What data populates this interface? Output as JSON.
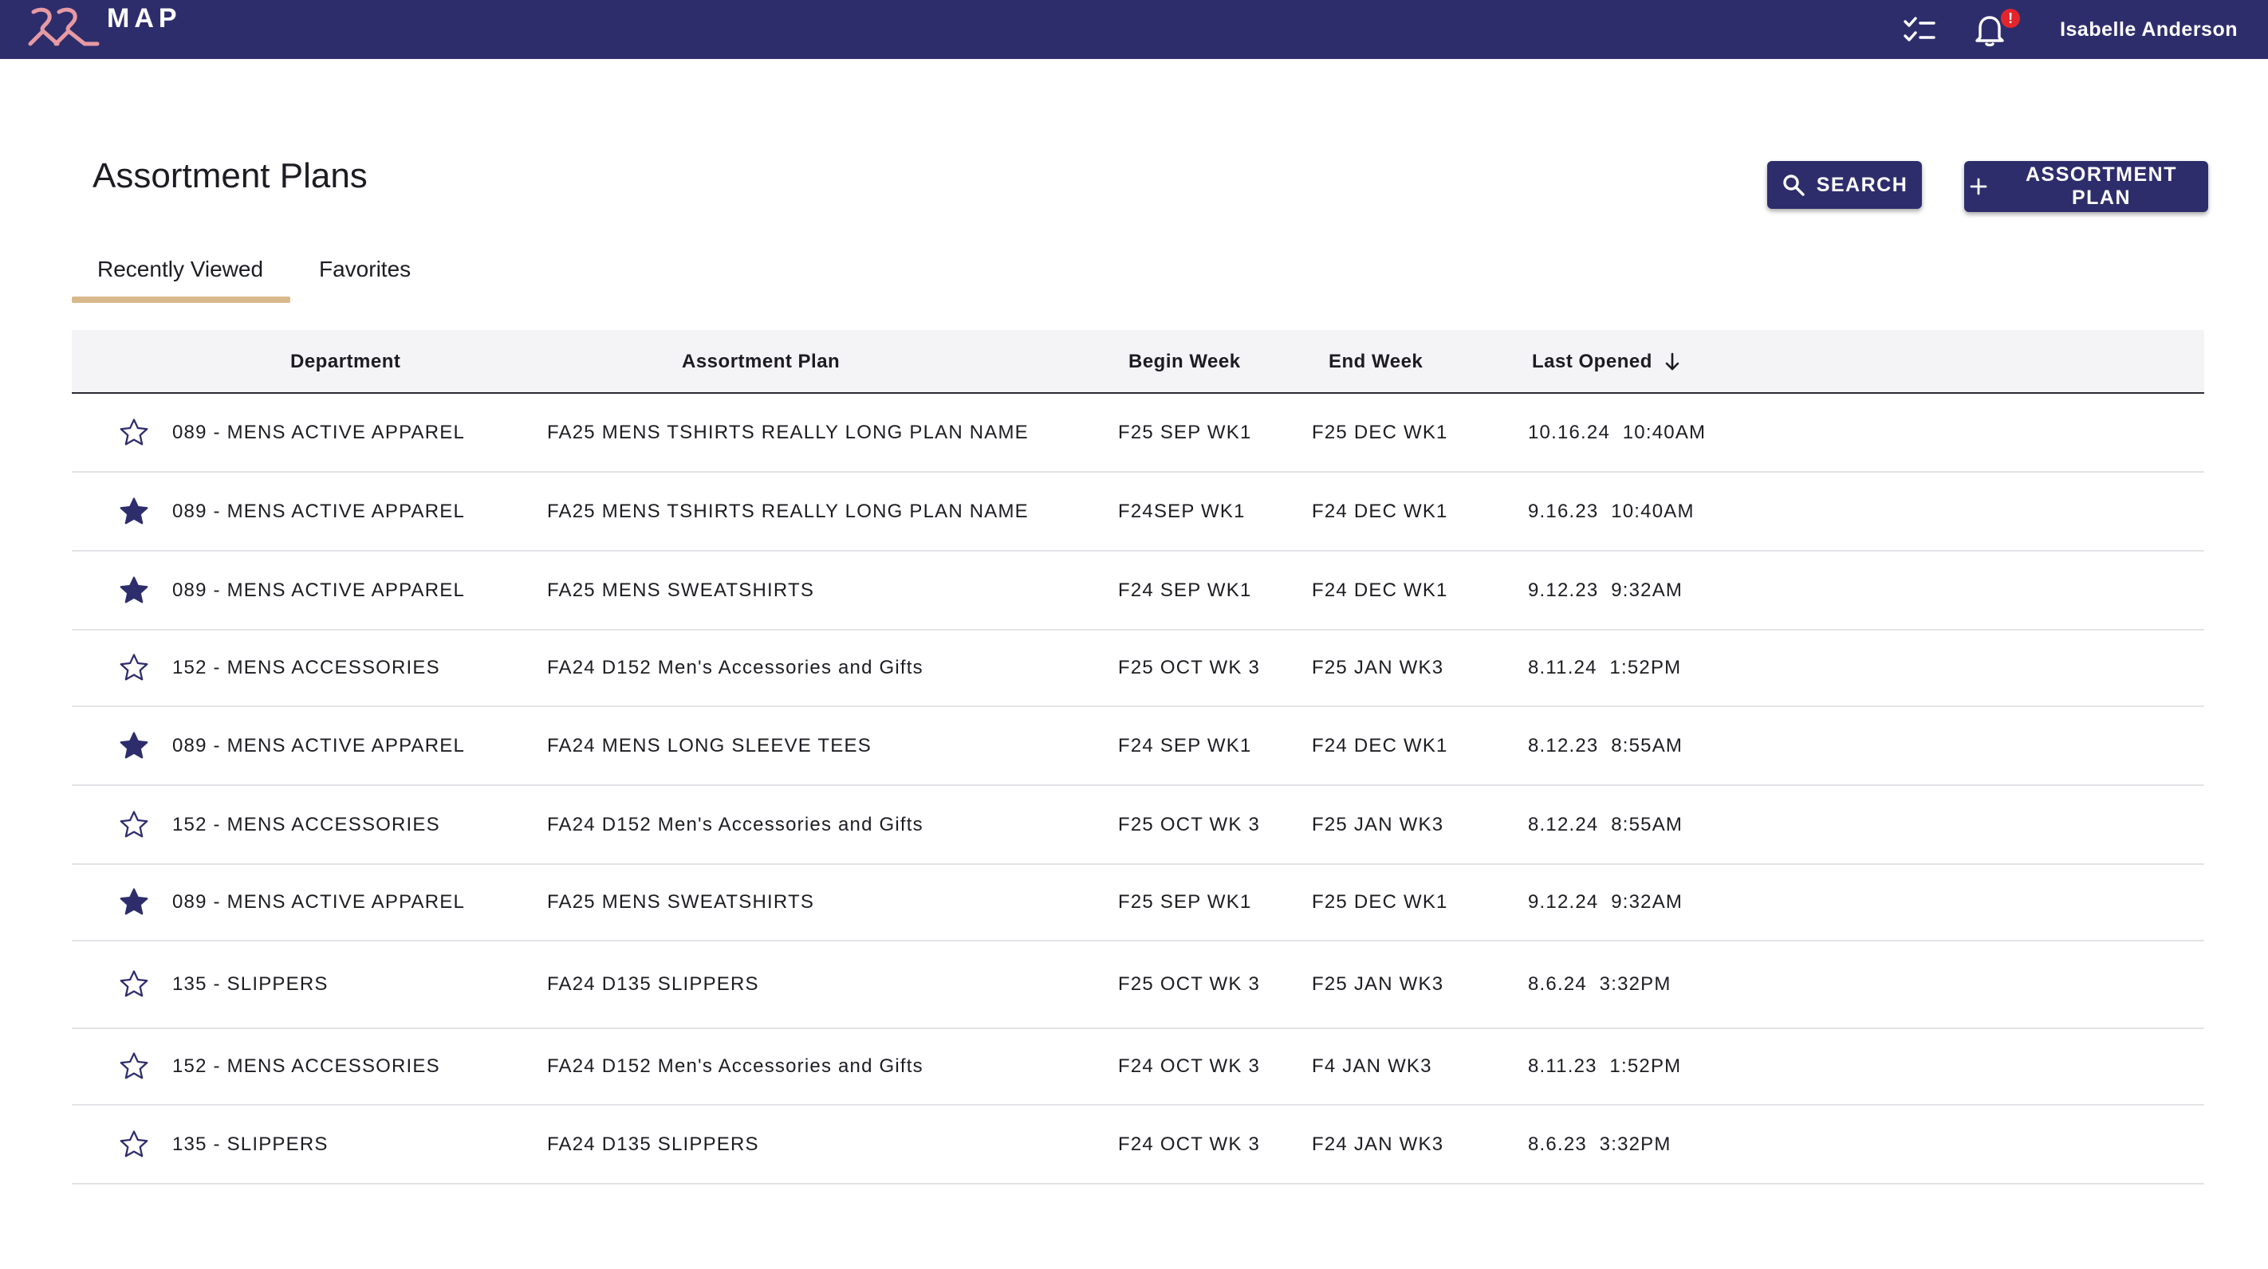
{
  "header": {
    "brand_text": "MAP",
    "user_name": "Isabelle Anderson",
    "notification_badge": "!",
    "accent_color": "#2e2d6c",
    "badge_color": "#e4262c"
  },
  "page": {
    "title": "Assortment Plans",
    "search_label": "SEARCH",
    "add_label": "ASSORTMENT PLAN"
  },
  "tabs": [
    {
      "label": "Recently Viewed",
      "active": true
    },
    {
      "label": "Favorites",
      "active": false
    }
  ],
  "table": {
    "columns": [
      "Department",
      "Assortment Plan",
      "Begin Week",
      "End Week",
      "Last Opened"
    ],
    "sort_column": "Last Opened",
    "sort_direction": "descending",
    "rows": [
      {
        "favorite": false,
        "department": "089 - MENS ACTIVE APPAREL",
        "plan": "FA25 MENS TSHIRTS REALLY LONG PLAN NAME",
        "begin": "F25 SEP WK1",
        "end": "F25 DEC WK1",
        "last_opened": "10.16.24  10:40AM"
      },
      {
        "favorite": true,
        "department": "089 - MENS ACTIVE APPAREL",
        "plan": "FA25 MENS TSHIRTS REALLY LONG PLAN NAME",
        "begin": "F24SEP WK1",
        "end": "F24 DEC WK1",
        "last_opened": "9.16.23  10:40AM"
      },
      {
        "favorite": true,
        "department": "089 - MENS ACTIVE APPAREL",
        "plan": "FA25 MENS SWEATSHIRTS",
        "begin": "F24 SEP WK1",
        "end": "F24 DEC WK1",
        "last_opened": "9.12.23  9:32AM"
      },
      {
        "favorite": false,
        "department": "152 - MENS ACCESSORIES",
        "plan": "FA24 D152 Men's Accessories and Gifts",
        "begin": "F25 OCT WK 3",
        "end": "F25 JAN WK3",
        "last_opened": "8.11.24  1:52PM"
      },
      {
        "favorite": true,
        "department": "089 - MENS ACTIVE APPAREL",
        "plan": "FA24 MENS LONG SLEEVE TEES",
        "begin": "F24 SEP WK1",
        "end": "F24 DEC WK1",
        "last_opened": "8.12.23  8:55AM"
      },
      {
        "favorite": false,
        "department": "152 - MENS ACCESSORIES",
        "plan": "FA24 D152 Men's Accessories and Gifts",
        "begin": "F25 OCT WK 3",
        "end": "F25 JAN WK3",
        "last_opened": "8.12.24  8:55AM"
      },
      {
        "favorite": true,
        "department": "089 - MENS ACTIVE APPAREL",
        "plan": "FA25 MENS SWEATSHIRTS",
        "begin": "F25 SEP WK1",
        "end": "F25 DEC WK1",
        "last_opened": "9.12.24  9:32AM"
      },
      {
        "favorite": false,
        "department": "135 - SLIPPERS",
        "plan": "FA24 D135 SLIPPERS",
        "begin": "F25 OCT WK 3",
        "end": "F25 JAN WK3",
        "last_opened": "8.6.24  3:32PM"
      },
      {
        "favorite": false,
        "department": "152 - MENS ACCESSORIES",
        "plan": "FA24 D152 Men's Accessories and Gifts",
        "begin": "F24 OCT WK 3",
        "end": "F4 JAN WK3",
        "last_opened": "8.11.23  1:52PM"
      },
      {
        "favorite": false,
        "department": "135 - SLIPPERS",
        "plan": "FA24 D135 SLIPPERS",
        "begin": "F24 OCT WK 3",
        "end": "F24 JAN WK3",
        "last_opened": "8.6.23  3:32PM"
      }
    ]
  },
  "icons": {
    "logo": "hanger-logo-icon",
    "tasks": "checklist-icon",
    "notifications": "bell-icon",
    "search": "search-icon",
    "add": "plus-icon",
    "sort": "arrow-down-icon",
    "favorite_on": "star-filled-icon",
    "favorite_off": "star-outline-icon"
  },
  "colors": {
    "star": "#2e2d6c",
    "tab_underline": "#d8b98c",
    "header_bg": "#f4f4f6"
  }
}
